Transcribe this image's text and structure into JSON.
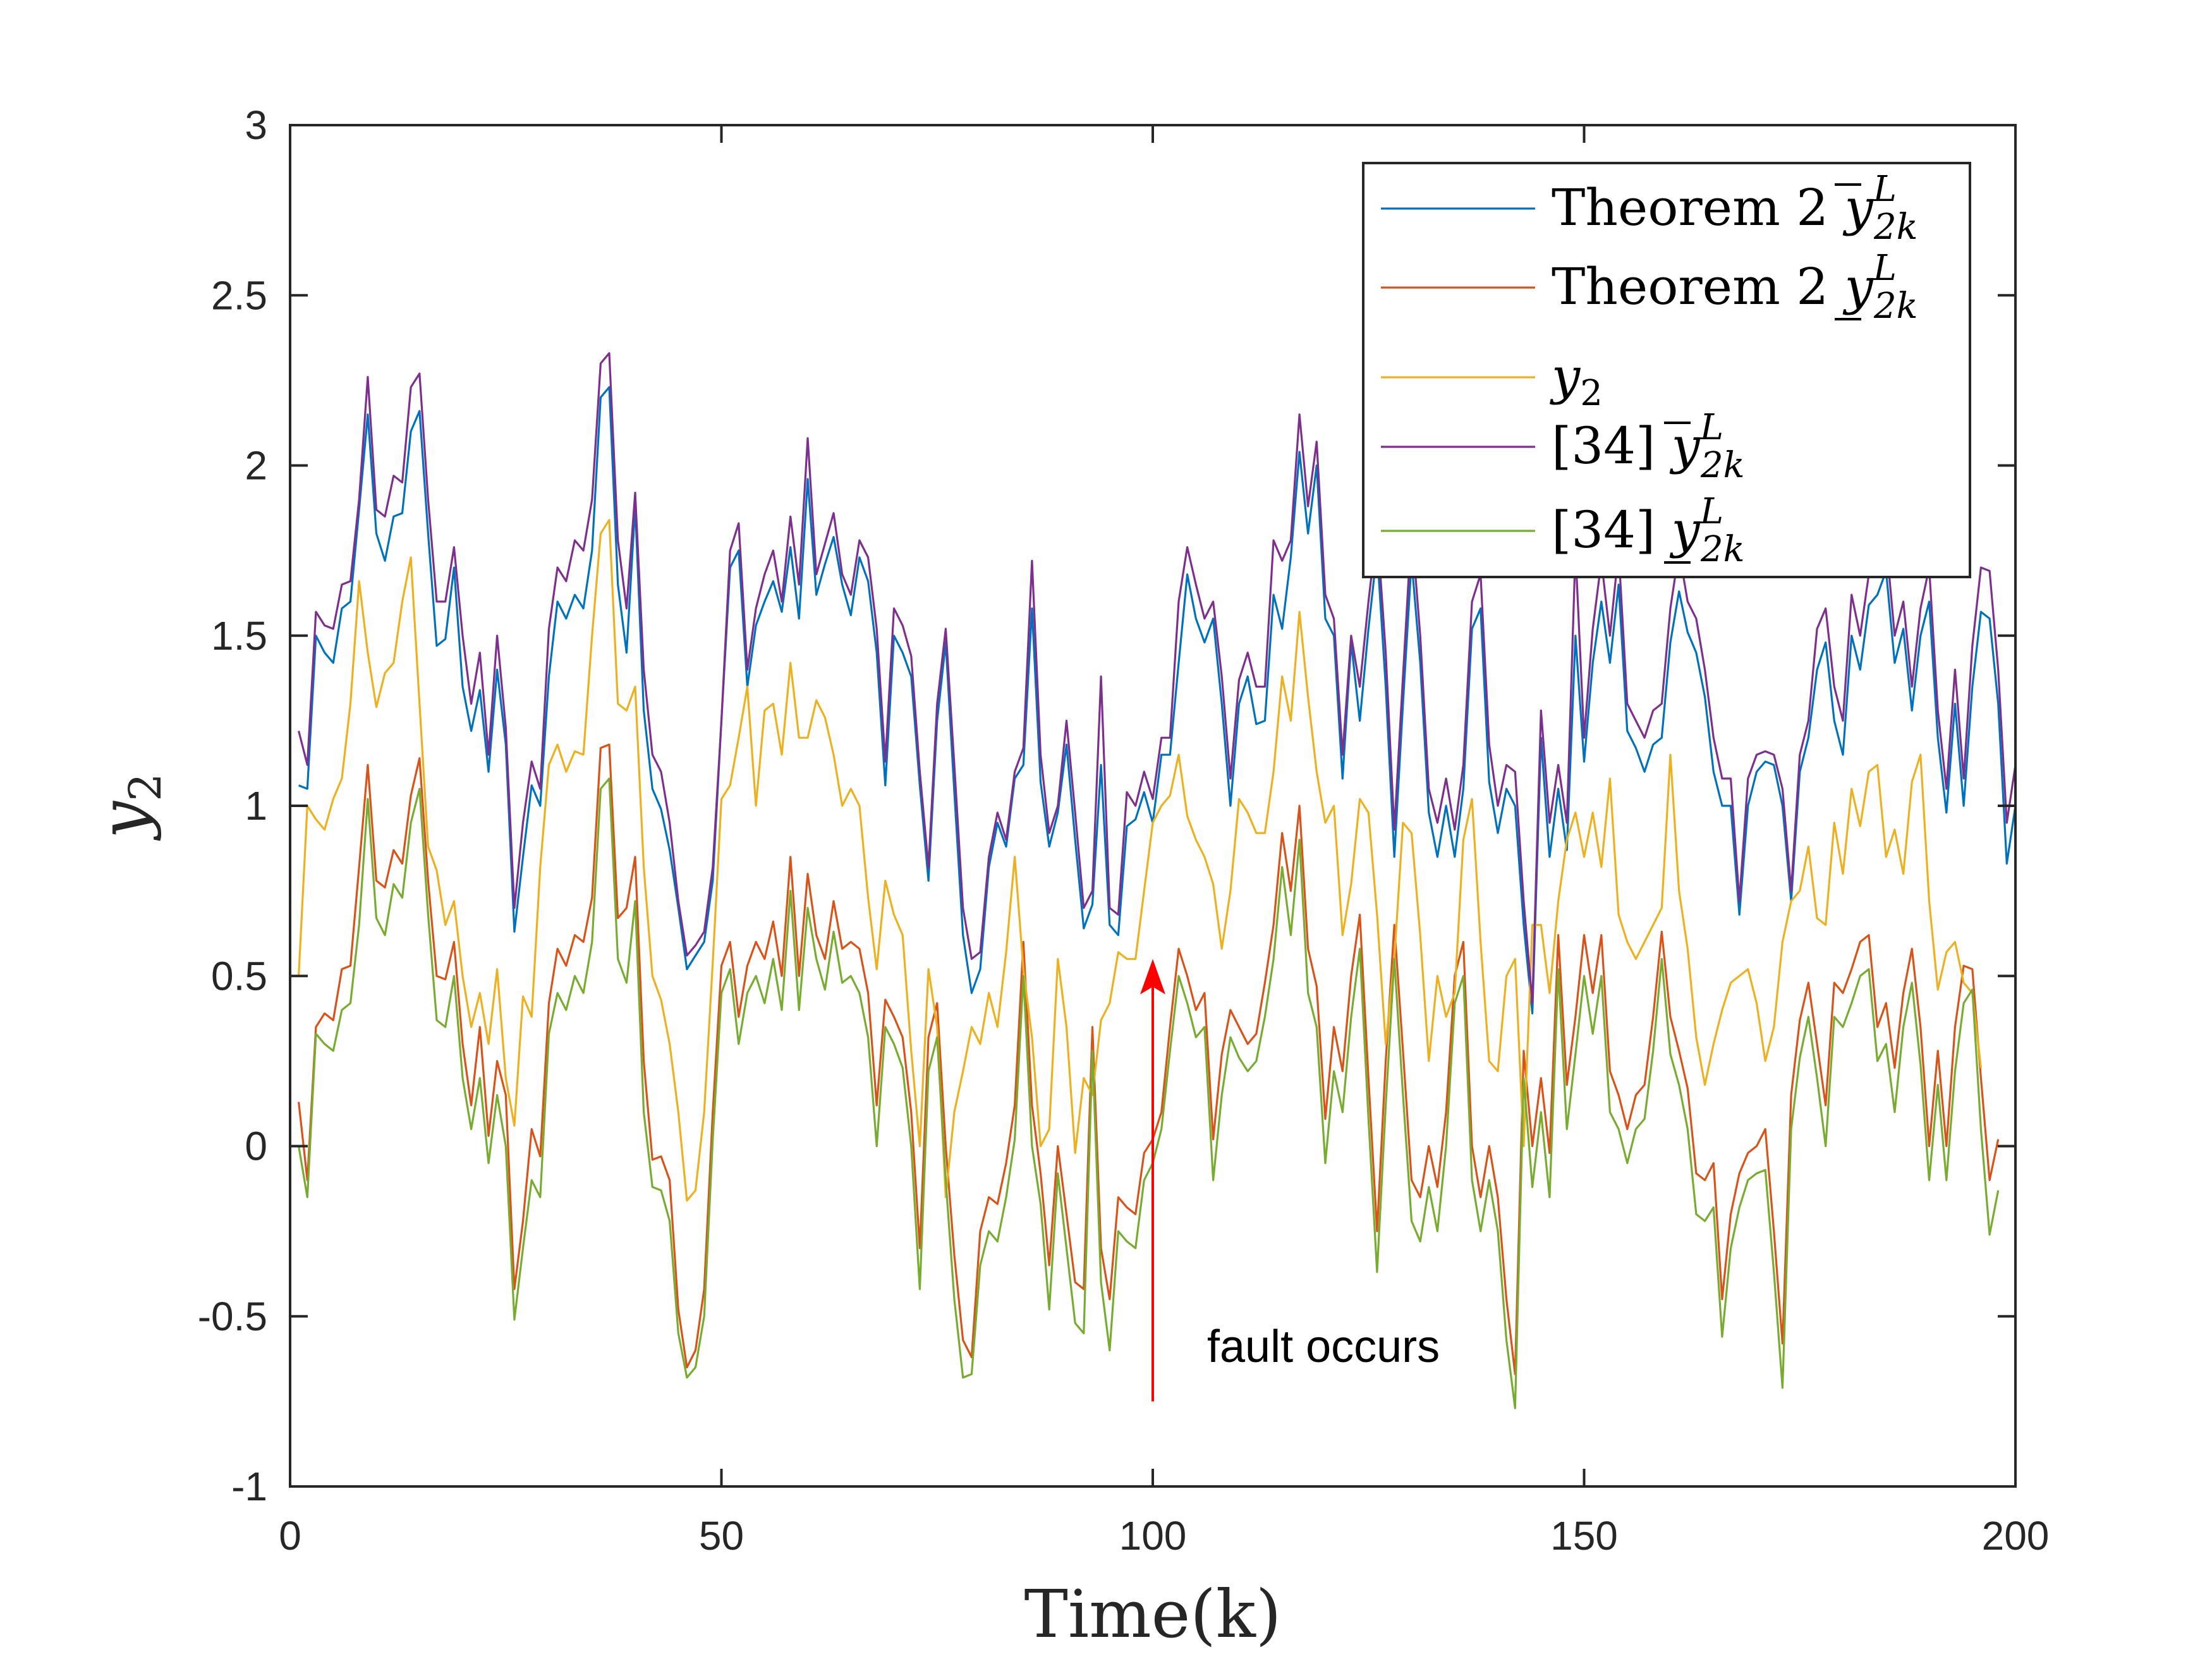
{
  "chart_data": {
    "type": "line",
    "title": "",
    "xlabel": "Time(k)",
    "ylabel": "y",
    "ylabel_sub": "2",
    "xlim": [
      0,
      200
    ],
    "ylim": [
      -1,
      3
    ],
    "xticks": [
      0,
      50,
      100,
      150,
      200
    ],
    "yticks": [
      -1,
      -0.5,
      0,
      0.5,
      1,
      1.5,
      2,
      2.5,
      3
    ],
    "xtick_labels": [
      "0",
      "50",
      "100",
      "150",
      "200"
    ],
    "ytick_labels": [
      "-1",
      "-0.5",
      "0",
      "0.5",
      "1",
      "1.5",
      "2",
      "2.5",
      "3"
    ],
    "grid": false,
    "legend_position": "top-right",
    "series": [
      {
        "name": "Theorem 2",
        "legend_symbol": "y",
        "legend_bar": "over",
        "legend_super": "L",
        "legend_sub": "2k",
        "color": "#0072BD",
        "values": [
          1.06,
          1.05,
          1.5,
          1.45,
          1.42,
          1.58,
          1.6,
          1.87,
          2.15,
          1.8,
          1.72,
          1.85,
          1.86,
          2.1,
          2.16,
          1.8,
          1.47,
          1.49,
          1.7,
          1.35,
          1.22,
          1.34,
          1.1,
          1.4,
          1.18,
          0.63,
          0.85,
          1.06,
          1.0,
          1.38,
          1.6,
          1.55,
          1.62,
          1.58,
          1.75,
          2.2,
          2.23,
          1.65,
          1.45,
          1.88,
          1.28,
          1.05,
          0.99,
          0.87,
          0.7,
          0.52,
          0.56,
          0.6,
          0.78,
          1.25,
          1.7,
          1.75,
          1.35,
          1.53,
          1.6,
          1.66,
          1.57,
          1.76,
          1.55,
          1.96,
          1.62,
          1.71,
          1.79,
          1.65,
          1.56,
          1.73,
          1.66,
          1.45,
          1.06,
          1.5,
          1.45,
          1.38,
          1.06,
          0.78,
          1.25,
          1.48,
          1.04,
          0.62,
          0.45,
          0.52,
          0.82,
          0.95,
          0.88,
          1.08,
          1.12,
          1.58,
          1.07,
          0.88,
          0.98,
          1.18,
          0.9,
          0.64,
          0.71,
          1.12,
          0.65,
          0.62,
          0.94,
          0.96,
          1.04,
          0.95,
          1.15,
          1.15,
          1.42,
          1.68,
          1.55,
          1.48,
          1.55,
          1.3,
          1.0,
          1.3,
          1.38,
          1.24,
          1.25,
          1.62,
          1.52,
          1.73,
          2.04,
          1.8,
          2.0,
          1.55,
          1.5,
          1.08,
          1.48,
          1.25,
          1.52,
          1.75,
          1.35,
          0.85,
          1.3,
          1.72,
          1.42,
          0.98,
          0.85,
          1.0,
          0.85,
          1.05,
          1.52,
          1.58,
          1.07,
          0.92,
          1.05,
          1.0,
          0.65,
          0.39,
          1.2,
          0.85,
          1.05,
          0.87,
          1.5,
          1.13,
          1.42,
          1.6,
          1.42,
          1.65,
          1.22,
          1.17,
          1.1,
          1.18,
          1.2,
          1.48,
          1.63,
          1.51,
          1.45,
          1.32,
          1.1,
          1.0,
          1.0,
          0.68,
          1.0,
          1.1,
          1.13,
          1.12,
          1.0,
          0.72,
          1.1,
          1.2,
          1.4,
          1.48,
          1.25,
          1.15,
          1.5,
          1.4,
          1.59,
          1.62,
          1.69,
          1.42,
          1.52,
          1.28,
          1.5,
          1.6,
          1.2,
          0.98,
          1.3,
          1.0,
          1.35,
          1.57,
          1.55,
          1.3,
          0.83,
          1.0
        ]
      },
      {
        "name": "Theorem 2",
        "legend_symbol": "y",
        "legend_bar": "under",
        "legend_super": "L",
        "legend_sub": "2k",
        "color": "#D95319",
        "values": [
          0.13,
          -0.1,
          0.35,
          0.39,
          0.37,
          0.52,
          0.53,
          0.82,
          1.12,
          0.78,
          0.76,
          0.87,
          0.83,
          1.03,
          1.14,
          0.78,
          0.5,
          0.49,
          0.6,
          0.3,
          0.12,
          0.35,
          0.03,
          0.25,
          0.15,
          -0.42,
          -0.22,
          0.05,
          -0.03,
          0.42,
          0.58,
          0.53,
          0.62,
          0.6,
          0.73,
          1.17,
          1.18,
          0.67,
          0.7,
          0.85,
          0.25,
          -0.04,
          -0.03,
          -0.1,
          -0.48,
          -0.65,
          -0.6,
          -0.42,
          0.1,
          0.53,
          0.6,
          0.38,
          0.53,
          0.6,
          0.55,
          0.66,
          0.5,
          0.85,
          0.5,
          0.8,
          0.62,
          0.55,
          0.72,
          0.58,
          0.6,
          0.58,
          0.45,
          0.12,
          0.43,
          0.38,
          0.32,
          0.1,
          -0.3,
          0.32,
          0.42,
          0.0,
          -0.32,
          -0.57,
          -0.62,
          -0.25,
          -0.15,
          -0.17,
          -0.05,
          0.12,
          0.6,
          0.12,
          -0.08,
          -0.35,
          0.0,
          -0.2,
          -0.4,
          -0.42,
          0.35,
          -0.3,
          -0.45,
          -0.15,
          -0.18,
          -0.2,
          -0.02,
          0.02,
          0.1,
          0.35,
          0.58,
          0.5,
          0.4,
          0.45,
          0.02,
          0.27,
          0.4,
          0.35,
          0.3,
          0.33,
          0.48,
          0.65,
          0.92,
          0.75,
          1.0,
          0.58,
          0.47,
          0.08,
          0.35,
          0.22,
          0.5,
          0.68,
          0.2,
          -0.25,
          0.25,
          0.65,
          0.28,
          -0.1,
          -0.15,
          0.0,
          -0.12,
          0.1,
          0.5,
          0.6,
          0.0,
          -0.15,
          0.0,
          -0.15,
          -0.45,
          -0.67,
          0.28,
          0.0,
          0.2,
          -0.02,
          0.62,
          0.18,
          0.38,
          0.62,
          0.45,
          0.62,
          0.22,
          0.15,
          0.05,
          0.15,
          0.18,
          0.38,
          0.63,
          0.38,
          0.28,
          0.17,
          -0.08,
          -0.1,
          -0.05,
          -0.45,
          -0.2,
          -0.08,
          -0.02,
          0.0,
          0.05,
          -0.25,
          -0.58,
          0.15,
          0.37,
          0.48,
          0.3,
          0.12,
          0.48,
          0.45,
          0.52,
          0.6,
          0.62,
          0.35,
          0.42,
          0.23,
          0.45,
          0.58,
          0.35,
          0.0,
          0.28,
          0.0,
          0.35,
          0.53,
          0.52,
          0.2,
          -0.1,
          0.02
        ]
      },
      {
        "name": "",
        "legend_symbol": "y",
        "legend_bar": "none",
        "legend_super": "",
        "legend_sub": "2",
        "color": "#EDB120",
        "values": [
          0.5,
          1.0,
          0.96,
          0.93,
          1.02,
          1.08,
          1.3,
          1.66,
          1.45,
          1.29,
          1.39,
          1.42,
          1.6,
          1.73,
          1.3,
          0.88,
          0.81,
          0.65,
          0.72,
          0.5,
          0.35,
          0.45,
          0.3,
          0.52,
          0.2,
          0.06,
          0.44,
          0.38,
          0.82,
          1.12,
          1.18,
          1.1,
          1.16,
          1.15,
          1.5,
          1.8,
          1.84,
          1.3,
          1.28,
          1.35,
          0.82,
          0.5,
          0.43,
          0.3,
          0.1,
          -0.16,
          -0.13,
          0.1,
          0.54,
          1.02,
          1.06,
          1.2,
          1.35,
          1.0,
          1.28,
          1.3,
          1.15,
          1.42,
          1.2,
          1.2,
          1.31,
          1.26,
          1.15,
          1.0,
          1.05,
          1.0,
          0.73,
          0.52,
          0.78,
          0.68,
          0.62,
          0.28,
          0.0,
          0.52,
          0.35,
          -0.15,
          0.1,
          0.22,
          0.35,
          0.3,
          0.45,
          0.35,
          0.57,
          0.85,
          0.52,
          0.32,
          0.0,
          0.05,
          0.55,
          0.35,
          -0.02,
          0.2,
          0.15,
          0.37,
          0.42,
          0.57,
          0.55,
          0.55,
          0.75,
          0.95,
          1.0,
          1.03,
          1.15,
          0.97,
          0.9,
          0.85,
          0.77,
          0.58,
          0.75,
          1.02,
          0.98,
          0.92,
          0.92,
          1.1,
          1.38,
          1.25,
          1.57,
          1.32,
          1.1,
          0.95,
          1.0,
          0.62,
          0.77,
          1.02,
          0.98,
          0.68,
          0.3,
          0.55,
          0.95,
          0.92,
          0.62,
          0.25,
          0.5,
          0.38,
          0.45,
          0.9,
          1.02,
          0.6,
          0.25,
          0.22,
          0.5,
          0.55,
          0.0,
          0.65,
          0.65,
          0.45,
          0.72,
          0.9,
          0.98,
          0.85,
          0.98,
          0.82,
          1.08,
          0.68,
          0.6,
          0.55,
          0.6,
          0.65,
          0.7,
          1.15,
          0.75,
          0.58,
          0.32,
          0.18,
          0.3,
          0.4,
          0.48,
          0.5,
          0.52,
          0.42,
          0.25,
          0.35,
          0.6,
          0.72,
          0.75,
          0.88,
          0.67,
          0.65,
          0.95,
          0.8,
          1.05,
          0.94,
          1.1,
          1.12,
          0.85,
          0.93,
          0.8,
          1.07,
          1.15,
          0.72,
          0.46,
          0.57,
          0.6,
          0.48,
          0.45,
          0.23
        ]
      },
      {
        "name": "[34]",
        "legend_symbol": "y",
        "legend_bar": "over",
        "legend_super": "L",
        "legend_sub": "2k",
        "color": "#7E2F8E",
        "values": [
          1.22,
          1.12,
          1.57,
          1.53,
          1.52,
          1.65,
          1.66,
          1.9,
          2.26,
          1.87,
          1.85,
          1.97,
          1.95,
          2.23,
          2.27,
          1.9,
          1.6,
          1.6,
          1.76,
          1.5,
          1.3,
          1.45,
          1.15,
          1.5,
          1.23,
          0.7,
          0.95,
          1.13,
          1.05,
          1.52,
          1.7,
          1.66,
          1.78,
          1.75,
          1.9,
          2.3,
          2.33,
          1.78,
          1.58,
          1.92,
          1.4,
          1.15,
          1.1,
          0.95,
          0.72,
          0.56,
          0.59,
          0.63,
          0.82,
          1.25,
          1.75,
          1.83,
          1.4,
          1.58,
          1.68,
          1.75,
          1.6,
          1.85,
          1.65,
          2.08,
          1.68,
          1.77,
          1.86,
          1.68,
          1.62,
          1.78,
          1.73,
          1.52,
          1.13,
          1.58,
          1.53,
          1.44,
          1.1,
          0.82,
          1.3,
          1.52,
          1.12,
          0.7,
          0.55,
          0.57,
          0.85,
          0.98,
          0.9,
          1.1,
          1.17,
          1.72,
          1.15,
          0.92,
          1.0,
          1.25,
          0.98,
          0.7,
          0.75,
          1.38,
          0.7,
          0.68,
          1.04,
          1.0,
          1.1,
          1.02,
          1.2,
          1.2,
          1.6,
          1.76,
          1.65,
          1.55,
          1.6,
          1.38,
          1.08,
          1.37,
          1.45,
          1.35,
          1.35,
          1.78,
          1.72,
          1.78,
          2.15,
          1.88,
          2.07,
          1.62,
          1.55,
          1.15,
          1.5,
          1.35,
          1.6,
          1.82,
          1.45,
          0.93,
          1.38,
          1.82,
          1.5,
          1.05,
          0.95,
          1.08,
          0.93,
          1.12,
          1.6,
          1.68,
          1.18,
          1.0,
          1.12,
          1.1,
          0.72,
          0.42,
          1.28,
          0.95,
          1.12,
          0.95,
          1.75,
          1.2,
          1.52,
          1.72,
          1.5,
          1.75,
          1.3,
          1.25,
          1.2,
          1.28,
          1.3,
          1.58,
          1.75,
          1.6,
          1.55,
          1.4,
          1.2,
          1.08,
          1.08,
          0.72,
          1.08,
          1.15,
          1.16,
          1.15,
          1.05,
          0.75,
          1.15,
          1.25,
          1.52,
          1.58,
          1.35,
          1.25,
          1.62,
          1.5,
          1.68,
          1.7,
          1.78,
          1.5,
          1.6,
          1.35,
          1.58,
          1.7,
          1.28,
          1.05,
          1.4,
          1.08,
          1.47,
          1.7,
          1.69,
          1.4,
          0.95,
          1.12
        ]
      },
      {
        "name": "[34]",
        "legend_symbol": "y",
        "legend_bar": "under",
        "legend_super": "L",
        "legend_sub": "2k",
        "color": "#77AC30",
        "values": [
          0.0,
          -0.15,
          0.33,
          0.3,
          0.28,
          0.4,
          0.42,
          0.65,
          1.02,
          0.67,
          0.62,
          0.77,
          0.73,
          0.95,
          1.05,
          0.68,
          0.37,
          0.35,
          0.5,
          0.2,
          0.05,
          0.2,
          -0.05,
          0.15,
          0.0,
          -0.51,
          -0.3,
          -0.1,
          -0.15,
          0.33,
          0.45,
          0.4,
          0.5,
          0.45,
          0.6,
          1.05,
          1.08,
          0.55,
          0.48,
          0.72,
          0.1,
          -0.12,
          -0.13,
          -0.22,
          -0.55,
          -0.68,
          -0.65,
          -0.5,
          0.02,
          0.45,
          0.52,
          0.3,
          0.45,
          0.5,
          0.42,
          0.55,
          0.4,
          0.75,
          0.4,
          0.7,
          0.55,
          0.46,
          0.63,
          0.48,
          0.5,
          0.45,
          0.32,
          0.0,
          0.35,
          0.3,
          0.23,
          0.0,
          -0.42,
          0.22,
          0.32,
          -0.1,
          -0.45,
          -0.68,
          -0.67,
          -0.35,
          -0.25,
          -0.28,
          -0.15,
          0.02,
          0.5,
          0.0,
          -0.17,
          -0.48,
          -0.08,
          -0.3,
          -0.52,
          -0.55,
          0.28,
          -0.4,
          -0.6,
          -0.25,
          -0.28,
          -0.3,
          -0.1,
          -0.05,
          0.05,
          0.28,
          0.5,
          0.42,
          0.32,
          0.35,
          -0.1,
          0.15,
          0.32,
          0.26,
          0.22,
          0.25,
          0.38,
          0.55,
          0.82,
          0.62,
          0.9,
          0.45,
          0.35,
          -0.05,
          0.22,
          0.1,
          0.38,
          0.58,
          0.08,
          -0.37,
          0.12,
          0.55,
          0.15,
          -0.22,
          -0.28,
          -0.12,
          -0.25,
          0.0,
          0.42,
          0.5,
          -0.1,
          -0.25,
          -0.1,
          -0.25,
          -0.57,
          -0.77,
          0.2,
          -0.12,
          0.1,
          -0.15,
          0.52,
          0.05,
          0.27,
          0.5,
          0.33,
          0.5,
          0.1,
          0.05,
          -0.05,
          0.05,
          0.08,
          0.28,
          0.55,
          0.27,
          0.18,
          0.05,
          -0.2,
          -0.22,
          -0.18,
          -0.56,
          -0.3,
          -0.18,
          -0.1,
          -0.08,
          -0.07,
          -0.37,
          -0.71,
          0.05,
          0.26,
          0.38,
          0.2,
          0.0,
          0.38,
          0.35,
          0.42,
          0.5,
          0.52,
          0.25,
          0.3,
          0.1,
          0.35,
          0.48,
          0.24,
          -0.1,
          0.18,
          -0.1,
          0.22,
          0.42,
          0.46,
          0.05,
          -0.26,
          -0.13
        ]
      }
    ],
    "annotation": {
      "text": "fault occurs",
      "arrow_x": 100,
      "arrow_from_y": -0.75,
      "arrow_to_y": 0.55,
      "color": "#FF0000"
    }
  }
}
